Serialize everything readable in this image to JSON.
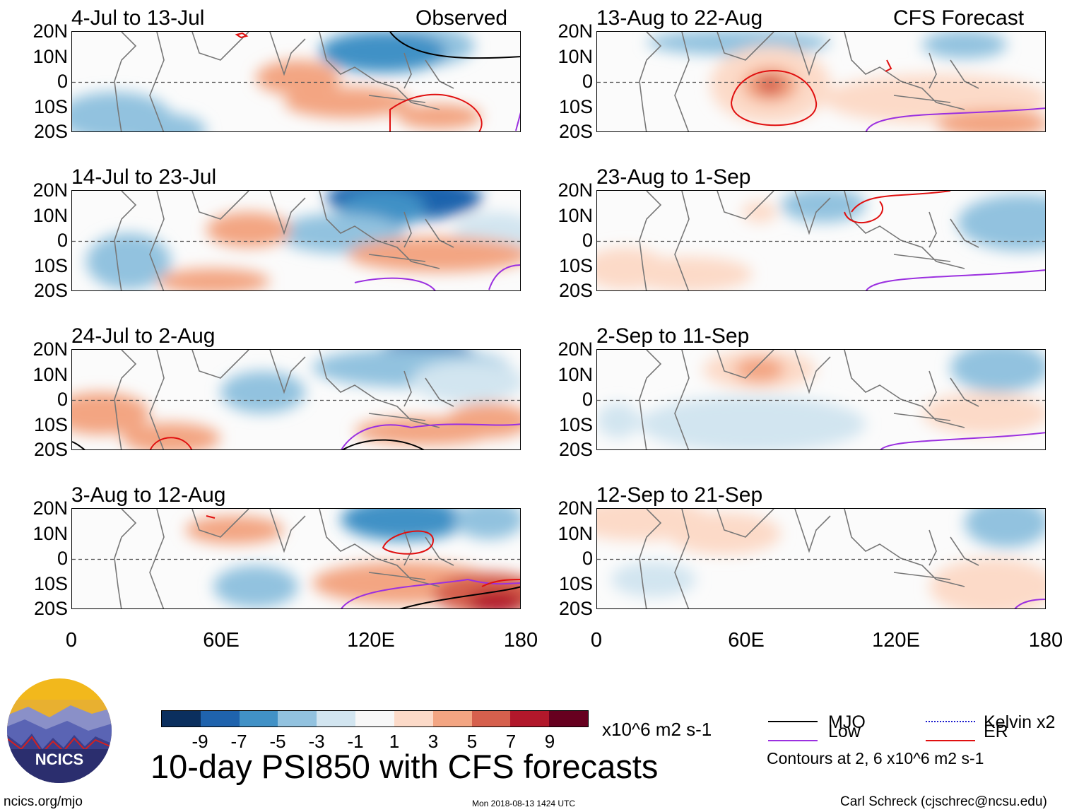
{
  "chart_data": {
    "type": "heatmap",
    "title": "10-day PSI850 with CFS forecasts",
    "variable": "PSI850",
    "units": "x10^6 m2 s-1",
    "observed_label": "Observed",
    "forecast_label": "CFS Forecast",
    "panels": [
      {
        "id": "obs1",
        "period": "4-Jul to 13-Jul",
        "column": "observed"
      },
      {
        "id": "obs2",
        "period": "14-Jul to 23-Jul",
        "column": "observed"
      },
      {
        "id": "obs3",
        "period": "24-Jul to 2-Aug",
        "column": "observed"
      },
      {
        "id": "obs4",
        "period": "3-Aug to 12-Aug",
        "column": "observed"
      },
      {
        "id": "fc1",
        "period": "13-Aug to 22-Aug",
        "column": "forecast"
      },
      {
        "id": "fc2",
        "period": "23-Aug to 1-Sep",
        "column": "forecast"
      },
      {
        "id": "fc3",
        "period": "2-Sep to 11-Sep",
        "column": "forecast"
      },
      {
        "id": "fc4",
        "period": "12-Sep to 21-Sep",
        "column": "forecast"
      }
    ],
    "y_axis": {
      "labels": [
        "20N",
        "10N",
        "0",
        "10S",
        "20S"
      ],
      "range": [
        -20,
        20
      ]
    },
    "x_axis": {
      "labels": [
        "0",
        "60E",
        "120E",
        "180"
      ],
      "range": [
        0,
        180
      ]
    },
    "colorbar": {
      "colors": [
        "#0b2f5e",
        "#1f63ad",
        "#4191c6",
        "#92c2df",
        "#d2e5f0",
        "#f7f7f7",
        "#fcdac8",
        "#f3a582",
        "#d6604d",
        "#b2182b",
        "#67001f"
      ],
      "tick_labels": [
        "-9",
        "-7",
        "-5",
        "-3",
        "-1",
        "1",
        "3",
        "5",
        "7",
        "9"
      ]
    },
    "legend": {
      "MJO": {
        "label": "MJO",
        "color": "#000000"
      },
      "Kelvin": {
        "label": "Kelvin x2",
        "color": "#1a1acc"
      },
      "Low": {
        "label": "Low",
        "color": "#9b30e0"
      },
      "ER": {
        "label": "ER",
        "color": "#e01010"
      },
      "contour_note": "Contours at 2, 6 x10^6 m2 s-1"
    }
  },
  "footer": {
    "site": "ncics.org/mjo",
    "timestamp": "Mon 2018-08-13 1424 UTC",
    "author": "Carl Schreck (cjschrec@ncsu.edu)",
    "logo_text": "NCICS"
  }
}
